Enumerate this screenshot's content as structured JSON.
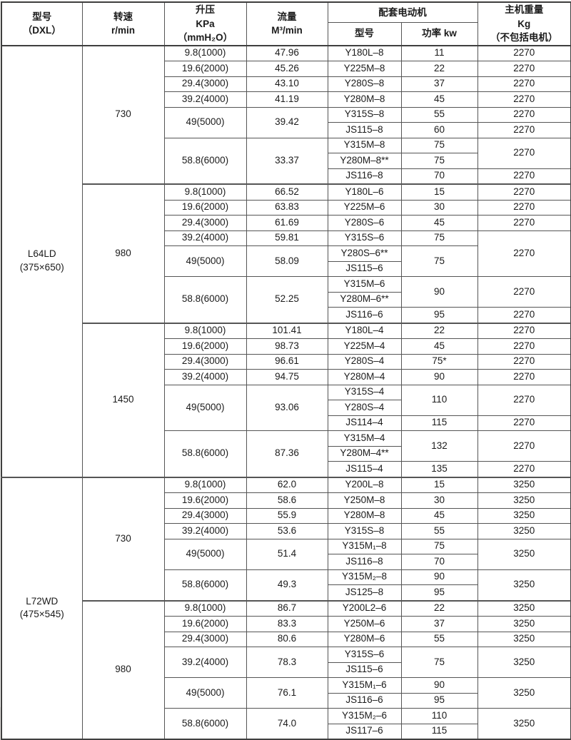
{
  "colors": {
    "page_background": "#eceae7",
    "table_background": "#ffffff",
    "table_border": "#555555",
    "text": "#1b1b1b"
  },
  "table": {
    "header": {
      "model": "型号\n（DXL）",
      "speed": "转速\nr/min",
      "pressure": "升压\nKPa\n（mmH₂O）",
      "flow": "流量\nM³/min",
      "motor_group": "配套电动机",
      "motor_model": "型号",
      "motor_power": "功率 kw",
      "weight": "主机重量\nKg\n（不包括电机）"
    },
    "rows": [
      {
        "cells": [
          {
            "t": "L64LD\n(375×650)",
            "n": "model-cell",
            "rs": 28
          },
          {
            "t": "730",
            "n": "speed-cell",
            "rs": 9
          },
          {
            "t": "9.8(1000)",
            "n": "pressure-cell"
          },
          {
            "t": "47.96",
            "n": "flow-cell"
          },
          {
            "t": "Y180L–8",
            "n": "motor-model-cell"
          },
          {
            "t": "11",
            "n": "power-cell"
          },
          {
            "t": "2270",
            "n": "weight-cell"
          }
        ]
      },
      {
        "cells": [
          {
            "t": "19.6(2000)",
            "n": "pressure-cell"
          },
          {
            "t": "45.26",
            "n": "flow-cell"
          },
          {
            "t": "Y225M–8",
            "n": "motor-model-cell"
          },
          {
            "t": "22",
            "n": "power-cell"
          },
          {
            "t": "2270",
            "n": "weight-cell"
          }
        ]
      },
      {
        "cells": [
          {
            "t": "29.4(3000)",
            "n": "pressure-cell"
          },
          {
            "t": "43.10",
            "n": "flow-cell"
          },
          {
            "t": "Y280S–8",
            "n": "motor-model-cell"
          },
          {
            "t": "37",
            "n": "power-cell"
          },
          {
            "t": "2270",
            "n": "weight-cell"
          }
        ]
      },
      {
        "cells": [
          {
            "t": "39.2(4000)",
            "n": "pressure-cell"
          },
          {
            "t": "41.19",
            "n": "flow-cell"
          },
          {
            "t": "Y280M–8",
            "n": "motor-model-cell"
          },
          {
            "t": "45",
            "n": "power-cell"
          },
          {
            "t": "2270",
            "n": "weight-cell"
          }
        ]
      },
      {
        "cells": [
          {
            "t": "49(5000)",
            "n": "pressure-cell",
            "rs": 2
          },
          {
            "t": "39.42",
            "n": "flow-cell",
            "rs": 2
          },
          {
            "t": "Y315S–8",
            "n": "motor-model-cell"
          },
          {
            "t": "55",
            "n": "power-cell"
          },
          {
            "t": "2270",
            "n": "weight-cell"
          }
        ]
      },
      {
        "cells": [
          {
            "t": "JS115–8",
            "n": "motor-model-cell"
          },
          {
            "t": "60",
            "n": "power-cell"
          },
          {
            "t": "2270",
            "n": "weight-cell"
          }
        ]
      },
      {
        "cells": [
          {
            "t": "58.8(6000)",
            "n": "pressure-cell",
            "rs": 3
          },
          {
            "t": "33.37",
            "n": "flow-cell",
            "rs": 3
          },
          {
            "t": "Y315M–8",
            "n": "motor-model-cell"
          },
          {
            "t": "75",
            "n": "power-cell"
          },
          {
            "t": "2270",
            "n": "weight-cell",
            "rs": 2
          }
        ]
      },
      {
        "cells": [
          {
            "t": "Y280M–8**",
            "n": "motor-model-cell"
          },
          {
            "t": "75",
            "n": "power-cell"
          }
        ]
      },
      {
        "cells": [
          {
            "t": "JS116–8",
            "n": "motor-model-cell"
          },
          {
            "t": "70",
            "n": "power-cell"
          },
          {
            "t": "2270",
            "n": "weight-cell"
          }
        ]
      },
      {
        "thick": true,
        "cells": [
          {
            "t": "980",
            "n": "speed-cell",
            "rs": 9
          },
          {
            "t": "9.8(1000)",
            "n": "pressure-cell"
          },
          {
            "t": "66.52",
            "n": "flow-cell"
          },
          {
            "t": "Y180L–6",
            "n": "motor-model-cell"
          },
          {
            "t": "15",
            "n": "power-cell"
          },
          {
            "t": "2270",
            "n": "weight-cell"
          }
        ]
      },
      {
        "cells": [
          {
            "t": "19.6(2000)",
            "n": "pressure-cell"
          },
          {
            "t": "63.83",
            "n": "flow-cell"
          },
          {
            "t": "Y225M–6",
            "n": "motor-model-cell"
          },
          {
            "t": "30",
            "n": "power-cell"
          },
          {
            "t": "2270",
            "n": "weight-cell"
          }
        ]
      },
      {
        "cells": [
          {
            "t": "29.4(3000)",
            "n": "pressure-cell"
          },
          {
            "t": "61.69",
            "n": "flow-cell"
          },
          {
            "t": "Y280S–6",
            "n": "motor-model-cell"
          },
          {
            "t": "45",
            "n": "power-cell"
          },
          {
            "t": "2270",
            "n": "weight-cell"
          }
        ]
      },
      {
        "cells": [
          {
            "t": "39.2(4000)",
            "n": "pressure-cell"
          },
          {
            "t": "59.81",
            "n": "flow-cell"
          },
          {
            "t": "Y315S–6",
            "n": "motor-model-cell"
          },
          {
            "t": "75",
            "n": "power-cell"
          },
          {
            "t": "2270",
            "n": "weight-cell",
            "rs": 3
          }
        ]
      },
      {
        "cells": [
          {
            "t": "49(5000)",
            "n": "pressure-cell",
            "rs": 2
          },
          {
            "t": "58.09",
            "n": "flow-cell",
            "rs": 2
          },
          {
            "t": "Y280S–6**",
            "n": "motor-model-cell"
          },
          {
            "t": "75",
            "n": "power-cell",
            "rs": 2
          }
        ]
      },
      {
        "cells": [
          {
            "t": "JS115–6",
            "n": "motor-model-cell"
          }
        ]
      },
      {
        "cells": [
          {
            "t": "58.8(6000)",
            "n": "pressure-cell",
            "rs": 3
          },
          {
            "t": "52.25",
            "n": "flow-cell",
            "rs": 3
          },
          {
            "t": "Y315M–6",
            "n": "motor-model-cell"
          },
          {
            "t": "90",
            "n": "power-cell",
            "rs": 2
          },
          {
            "t": "2270",
            "n": "weight-cell",
            "rs": 2
          }
        ]
      },
      {
        "cells": [
          {
            "t": "Y280M–6**",
            "n": "motor-model-cell"
          }
        ]
      },
      {
        "cells": [
          {
            "t": "JS116–6",
            "n": "motor-model-cell"
          },
          {
            "t": "95",
            "n": "power-cell"
          },
          {
            "t": "2270",
            "n": "weight-cell"
          }
        ]
      },
      {
        "thick": true,
        "cells": [
          {
            "t": "1450",
            "n": "speed-cell",
            "rs": 10
          },
          {
            "t": "9.8(1000)",
            "n": "pressure-cell"
          },
          {
            "t": "101.41",
            "n": "flow-cell"
          },
          {
            "t": "Y180L–4",
            "n": "motor-model-cell"
          },
          {
            "t": "22",
            "n": "power-cell"
          },
          {
            "t": "2270",
            "n": "weight-cell"
          }
        ]
      },
      {
        "cells": [
          {
            "t": "19.6(2000)",
            "n": "pressure-cell"
          },
          {
            "t": "98.73",
            "n": "flow-cell"
          },
          {
            "t": "Y225M–4",
            "n": "motor-model-cell"
          },
          {
            "t": "45",
            "n": "power-cell"
          },
          {
            "t": "2270",
            "n": "weight-cell"
          }
        ]
      },
      {
        "cells": [
          {
            "t": "29.4(3000)",
            "n": "pressure-cell"
          },
          {
            "t": "96.61",
            "n": "flow-cell"
          },
          {
            "t": "Y280S–4",
            "n": "motor-model-cell"
          },
          {
            "t": "75*",
            "n": "power-cell"
          },
          {
            "t": "2270",
            "n": "weight-cell"
          }
        ]
      },
      {
        "cells": [
          {
            "t": "39.2(4000)",
            "n": "pressure-cell"
          },
          {
            "t": "94.75",
            "n": "flow-cell"
          },
          {
            "t": "Y280M–4",
            "n": "motor-model-cell"
          },
          {
            "t": "90",
            "n": "power-cell"
          },
          {
            "t": "2270",
            "n": "weight-cell"
          }
        ]
      },
      {
        "cells": [
          {
            "t": "49(5000)",
            "n": "pressure-cell",
            "rs": 3
          },
          {
            "t": "93.06",
            "n": "flow-cell",
            "rs": 3
          },
          {
            "t": "Y315S–4",
            "n": "motor-model-cell"
          },
          {
            "t": "110",
            "n": "power-cell",
            "rs": 2
          },
          {
            "t": "2270",
            "n": "weight-cell",
            "rs": 2
          }
        ]
      },
      {
        "cells": [
          {
            "t": "Y280S–4",
            "n": "motor-model-cell"
          }
        ]
      },
      {
        "cells": [
          {
            "t": "JS114–4",
            "n": "motor-model-cell"
          },
          {
            "t": "115",
            "n": "power-cell"
          },
          {
            "t": "2270",
            "n": "weight-cell"
          }
        ]
      },
      {
        "cells": [
          {
            "t": "58.8(6000)",
            "n": "pressure-cell",
            "rs": 3
          },
          {
            "t": "87.36",
            "n": "flow-cell",
            "rs": 3
          },
          {
            "t": "Y315M–4",
            "n": "motor-model-cell"
          },
          {
            "t": "132",
            "n": "power-cell",
            "rs": 2
          },
          {
            "t": "2270",
            "n": "weight-cell",
            "rs": 2
          }
        ]
      },
      {
        "cells": [
          {
            "t": "Y280M–4**",
            "n": "motor-model-cell"
          }
        ]
      },
      {
        "cells": [
          {
            "t": "JS115–4",
            "n": "motor-model-cell"
          },
          {
            "t": "135",
            "n": "power-cell"
          },
          {
            "t": "2270",
            "n": "weight-cell"
          }
        ]
      },
      {
        "thick": true,
        "cells": [
          {
            "t": "L72WD\n(475×545)",
            "n": "model-cell",
            "rs": 17
          },
          {
            "t": "730",
            "n": "speed-cell",
            "rs": 8
          },
          {
            "t": "9.8(1000)",
            "n": "pressure-cell"
          },
          {
            "t": "62.0",
            "n": "flow-cell"
          },
          {
            "t": "Y200L–8",
            "n": "motor-model-cell"
          },
          {
            "t": "15",
            "n": "power-cell"
          },
          {
            "t": "3250",
            "n": "weight-cell"
          }
        ]
      },
      {
        "cells": [
          {
            "t": "19.6(2000)",
            "n": "pressure-cell"
          },
          {
            "t": "58.6",
            "n": "flow-cell"
          },
          {
            "t": "Y250M–8",
            "n": "motor-model-cell"
          },
          {
            "t": "30",
            "n": "power-cell"
          },
          {
            "t": "3250",
            "n": "weight-cell"
          }
        ]
      },
      {
        "cells": [
          {
            "t": "29.4(3000)",
            "n": "pressure-cell"
          },
          {
            "t": "55.9",
            "n": "flow-cell"
          },
          {
            "t": "Y280M–8",
            "n": "motor-model-cell"
          },
          {
            "t": "45",
            "n": "power-cell"
          },
          {
            "t": "3250",
            "n": "weight-cell"
          }
        ]
      },
      {
        "cells": [
          {
            "t": "39.2(4000)",
            "n": "pressure-cell"
          },
          {
            "t": "53.6",
            "n": "flow-cell"
          },
          {
            "t": "Y315S–8",
            "n": "motor-model-cell"
          },
          {
            "t": "55",
            "n": "power-cell"
          },
          {
            "t": "3250",
            "n": "weight-cell"
          }
        ]
      },
      {
        "cells": [
          {
            "t": "49(5000)",
            "n": "pressure-cell",
            "rs": 2
          },
          {
            "t": "51.4",
            "n": "flow-cell",
            "rs": 2
          },
          {
            "t": "Y315M₁–8",
            "n": "motor-model-cell"
          },
          {
            "t": "75",
            "n": "power-cell"
          },
          {
            "t": "3250",
            "n": "weight-cell",
            "rs": 2
          }
        ]
      },
      {
        "cells": [
          {
            "t": "JS116–8",
            "n": "motor-model-cell"
          },
          {
            "t": "70",
            "n": "power-cell"
          }
        ]
      },
      {
        "cells": [
          {
            "t": "58.8(6000)",
            "n": "pressure-cell",
            "rs": 2
          },
          {
            "t": "49.3",
            "n": "flow-cell",
            "rs": 2
          },
          {
            "t": "Y315M₂–8",
            "n": "motor-model-cell"
          },
          {
            "t": "90",
            "n": "power-cell"
          },
          {
            "t": "3250",
            "n": "weight-cell",
            "rs": 2
          }
        ]
      },
      {
        "cells": [
          {
            "t": "JS125–8",
            "n": "motor-model-cell"
          },
          {
            "t": "95",
            "n": "power-cell"
          }
        ]
      },
      {
        "thick": true,
        "cells": [
          {
            "t": "980",
            "n": "speed-cell",
            "rs": 9
          },
          {
            "t": "9.8(1000)",
            "n": "pressure-cell"
          },
          {
            "t": "86.7",
            "n": "flow-cell"
          },
          {
            "t": "Y200L2–6",
            "n": "motor-model-cell"
          },
          {
            "t": "22",
            "n": "power-cell"
          },
          {
            "t": "3250",
            "n": "weight-cell"
          }
        ]
      },
      {
        "cells": [
          {
            "t": "19.6(2000)",
            "n": "pressure-cell"
          },
          {
            "t": "83.3",
            "n": "flow-cell"
          },
          {
            "t": "Y250M–6",
            "n": "motor-model-cell"
          },
          {
            "t": "37",
            "n": "power-cell"
          },
          {
            "t": "3250",
            "n": "weight-cell"
          }
        ]
      },
      {
        "cells": [
          {
            "t": "29.4(3000)",
            "n": "pressure-cell"
          },
          {
            "t": "80.6",
            "n": "flow-cell"
          },
          {
            "t": "Y280M–6",
            "n": "motor-model-cell"
          },
          {
            "t": "55",
            "n": "power-cell"
          },
          {
            "t": "3250",
            "n": "weight-cell"
          }
        ]
      },
      {
        "cells": [
          {
            "t": "39.2(4000)",
            "n": "pressure-cell",
            "rs": 2
          },
          {
            "t": "78.3",
            "n": "flow-cell",
            "rs": 2
          },
          {
            "t": "Y315S–6",
            "n": "motor-model-cell"
          },
          {
            "t": "75",
            "n": "power-cell",
            "rs": 2
          },
          {
            "t": "3250",
            "n": "weight-cell",
            "rs": 2
          }
        ]
      },
      {
        "cells": [
          {
            "t": "JS115–6",
            "n": "motor-model-cell"
          }
        ]
      },
      {
        "cells": [
          {
            "t": "49(5000)",
            "n": "pressure-cell",
            "rs": 2
          },
          {
            "t": "76.1",
            "n": "flow-cell",
            "rs": 2
          },
          {
            "t": "Y315M₁–6",
            "n": "motor-model-cell"
          },
          {
            "t": "90",
            "n": "power-cell"
          },
          {
            "t": "3250",
            "n": "weight-cell",
            "rs": 2
          }
        ]
      },
      {
        "cells": [
          {
            "t": "JS116–6",
            "n": "motor-model-cell"
          },
          {
            "t": "95",
            "n": "power-cell"
          }
        ]
      },
      {
        "cells": [
          {
            "t": "58.8(6000)",
            "n": "pressure-cell",
            "rs": 2
          },
          {
            "t": "74.0",
            "n": "flow-cell",
            "rs": 2
          },
          {
            "t": "Y315M₂–6",
            "n": "motor-model-cell"
          },
          {
            "t": "110",
            "n": "power-cell"
          },
          {
            "t": "3250",
            "n": "weight-cell",
            "rs": 2
          }
        ]
      },
      {
        "cells": [
          {
            "t": "JS117–6",
            "n": "motor-model-cell"
          },
          {
            "t": "115",
            "n": "power-cell"
          }
        ]
      }
    ]
  }
}
